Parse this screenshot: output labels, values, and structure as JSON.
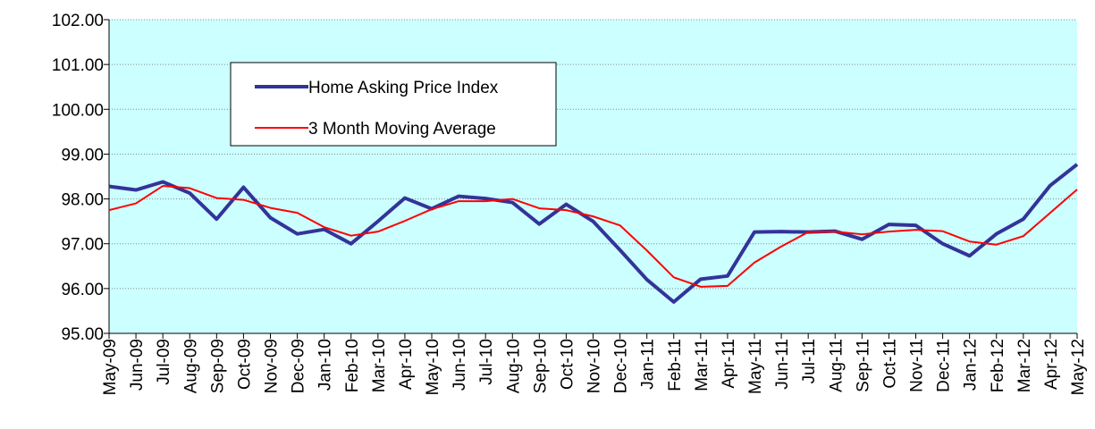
{
  "chart_data": {
    "type": "line",
    "categories": [
      "May-09",
      "Jun-09",
      "Jul-09",
      "Aug-09",
      "Sep-09",
      "Oct-09",
      "Nov-09",
      "Dec-09",
      "Jan-10",
      "Feb-10",
      "Mar-10",
      "Apr-10",
      "May-10",
      "Jun-10",
      "Jul-10",
      "Aug-10",
      "Sep-10",
      "Oct-10",
      "Nov-10",
      "Dec-10",
      "Jan-11",
      "Feb-11",
      "Mar-11",
      "Apr-11",
      "May-11",
      "Jun-11",
      "Jul-11",
      "Aug-11",
      "Sep-11",
      "Oct-11",
      "Nov-11",
      "Dec-11",
      "Jan-12",
      "Feb-12",
      "Mar-12",
      "Apr-12",
      "May-12"
    ],
    "series": [
      {
        "name": "Home Asking Price Index",
        "color": "#333399",
        "width": 4,
        "values": [
          98.28,
          98.2,
          98.38,
          98.13,
          97.55,
          98.26,
          97.58,
          97.22,
          97.32,
          97.0,
          97.5,
          98.02,
          97.78,
          98.06,
          98.01,
          97.92,
          97.44,
          97.88,
          97.5,
          96.86,
          96.2,
          95.7,
          96.21,
          96.28,
          97.26,
          97.27,
          97.26,
          97.28,
          97.1,
          97.43,
          97.41,
          97.0,
          96.73,
          97.22,
          97.55,
          98.3,
          98.77
        ]
      },
      {
        "name": "3 Month Moving Average",
        "color": "#ff0000",
        "width": 2,
        "values": [
          97.75,
          97.9,
          98.29,
          98.24,
          98.02,
          97.98,
          97.8,
          97.69,
          97.37,
          97.18,
          97.27,
          97.51,
          97.77,
          97.95,
          97.95,
          98.0,
          97.79,
          97.75,
          97.61,
          97.41,
          96.85,
          96.25,
          96.04,
          96.06,
          96.58,
          96.94,
          97.26,
          97.27,
          97.21,
          97.27,
          97.31,
          97.28,
          97.05,
          96.98,
          97.17,
          97.69,
          98.21
        ]
      }
    ],
    "ylim": [
      95,
      102
    ],
    "yticks": [
      {
        "value": 95,
        "label": "95.00"
      },
      {
        "value": 96,
        "label": "96.00"
      },
      {
        "value": 97,
        "label": "97.00"
      },
      {
        "value": 98,
        "label": "98.00"
      },
      {
        "value": 99,
        "label": "99.00"
      },
      {
        "value": 100,
        "label": "100.00"
      },
      {
        "value": 101,
        "label": "101.00"
      },
      {
        "value": 102,
        "label": "102.00"
      }
    ],
    "grid": true,
    "legend": "upper left",
    "background": "#ccffff"
  }
}
